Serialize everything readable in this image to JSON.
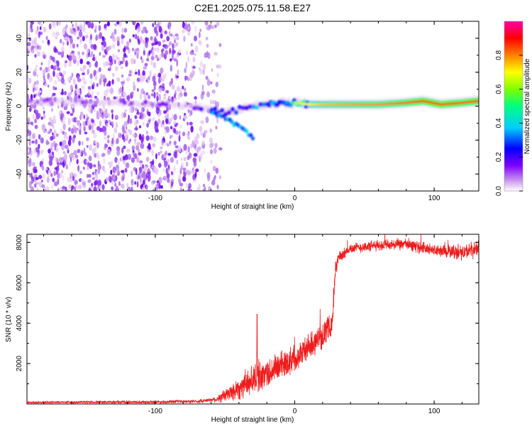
{
  "title": "C2E1.2025.075.11.58.E27",
  "chart_data": [
    {
      "type": "heatmap",
      "xlabel": "Height of straight line (km)",
      "ylabel": "Frequency (Hz)",
      "xlim": [
        -192,
        132
      ],
      "ylim": [
        -50,
        50
      ],
      "xticks": [
        -100,
        0,
        100
      ],
      "yticks": [
        -40,
        -20,
        0,
        20,
        40
      ],
      "colorbar": {
        "label": "Normalized spectral amplitude",
        "range": [
          0,
          1
        ],
        "ticks": [
          "0.0",
          "0.2",
          "0.4",
          "0.6",
          "0.8"
        ],
        "colors": [
          "#ffffff",
          "#cc99ee",
          "#7f00ff",
          "#0000ff",
          "#00ccff",
          "#00ff80",
          "#80ff00",
          "#ffff00",
          "#ff8000",
          "#ff0000",
          "#ff00aa"
        ]
      },
      "noise_region_x": [
        -192,
        -52
      ],
      "noise_density": [
        {
          "x": -190,
          "d": 1.0
        },
        {
          "x": -150,
          "d": 1.0
        },
        {
          "x": -100,
          "d": 0.95
        },
        {
          "x": -80,
          "d": 0.85
        },
        {
          "x": -65,
          "d": 0.5
        },
        {
          "x": -55,
          "d": 0.2
        }
      ],
      "signal_track": [
        {
          "x": -190,
          "f": 2,
          "amp": 0.25
        },
        {
          "x": -170,
          "f": 3,
          "amp": 0.25
        },
        {
          "x": -150,
          "f": 2,
          "amp": 0.28
        },
        {
          "x": -130,
          "f": 2,
          "amp": 0.3
        },
        {
          "x": -110,
          "f": 1,
          "amp": 0.28
        },
        {
          "x": -90,
          "f": 1,
          "amp": 0.28
        },
        {
          "x": -75,
          "f": 0,
          "amp": 0.35
        },
        {
          "x": -62,
          "f": -2,
          "amp": 0.4
        },
        {
          "x": -50,
          "f": -4,
          "amp": 0.45
        },
        {
          "x": -40,
          "f": -2,
          "amp": 0.5
        },
        {
          "x": -30,
          "f": 0,
          "amp": 0.55
        },
        {
          "x": -20,
          "f": 1,
          "amp": 0.6
        },
        {
          "x": -10,
          "f": 2,
          "amp": 0.6
        },
        {
          "x": 0,
          "f": 2,
          "amp": 0.65
        },
        {
          "x": 10,
          "f": 1,
          "amp": 0.7
        },
        {
          "x": 20,
          "f": 1,
          "amp": 0.75
        },
        {
          "x": 40,
          "f": 1,
          "amp": 0.78
        },
        {
          "x": 60,
          "f": 1,
          "amp": 0.8
        },
        {
          "x": 80,
          "f": 2,
          "amp": 0.85
        },
        {
          "x": 92,
          "f": 3,
          "amp": 0.9
        },
        {
          "x": 105,
          "f": 1,
          "amp": 0.9
        },
        {
          "x": 120,
          "f": 2,
          "amp": 0.88
        },
        {
          "x": 132,
          "f": 3,
          "amp": 0.88
        }
      ],
      "branch_track": [
        {
          "x": -60,
          "f": -3
        },
        {
          "x": -50,
          "f": -7
        },
        {
          "x": -42,
          "f": -11
        },
        {
          "x": -35,
          "f": -15
        },
        {
          "x": -30,
          "f": -19
        }
      ]
    },
    {
      "type": "line",
      "xlabel": "Height of straight line (km)",
      "ylabel": "SNR (10 * v/v)",
      "xlim": [
        -192,
        132
      ],
      "ylim": [
        0,
        8400
      ],
      "xticks": [
        -100,
        0,
        100
      ],
      "yticks": [
        2000,
        4000,
        6000,
        8000
      ],
      "series": [
        {
          "color": "#ee1c1c",
          "envelope": [
            {
              "x": -192,
              "y": 80
            },
            {
              "x": -150,
              "y": 90
            },
            {
              "x": -100,
              "y": 100
            },
            {
              "x": -70,
              "y": 130
            },
            {
              "x": -55,
              "y": 250
            },
            {
              "x": -45,
              "y": 600
            },
            {
              "x": -35,
              "y": 1000
            },
            {
              "x": -28,
              "y": 1300
            },
            {
              "x": -20,
              "y": 1500
            },
            {
              "x": -10,
              "y": 1900
            },
            {
              "x": 0,
              "y": 2300
            },
            {
              "x": 10,
              "y": 2800
            },
            {
              "x": 20,
              "y": 3400
            },
            {
              "x": 27,
              "y": 4000
            },
            {
              "x": 29,
              "y": 6500
            },
            {
              "x": 31,
              "y": 7200
            },
            {
              "x": 40,
              "y": 7700
            },
            {
              "x": 60,
              "y": 7850
            },
            {
              "x": 80,
              "y": 7900
            },
            {
              "x": 100,
              "y": 7600
            },
            {
              "x": 120,
              "y": 7500
            },
            {
              "x": 132,
              "y": 7700
            }
          ],
          "noise_amplitude": [
            {
              "x": -192,
              "a": 60
            },
            {
              "x": -60,
              "a": 100
            },
            {
              "x": -40,
              "a": 700
            },
            {
              "x": -25,
              "a": 900
            },
            {
              "x": 0,
              "a": 800
            },
            {
              "x": 25,
              "a": 700
            },
            {
              "x": 35,
              "a": 300
            },
            {
              "x": 100,
              "a": 350
            },
            {
              "x": 132,
              "a": 500
            }
          ],
          "spikes": [
            {
              "x": -27,
              "y": 4450
            }
          ]
        }
      ]
    }
  ]
}
